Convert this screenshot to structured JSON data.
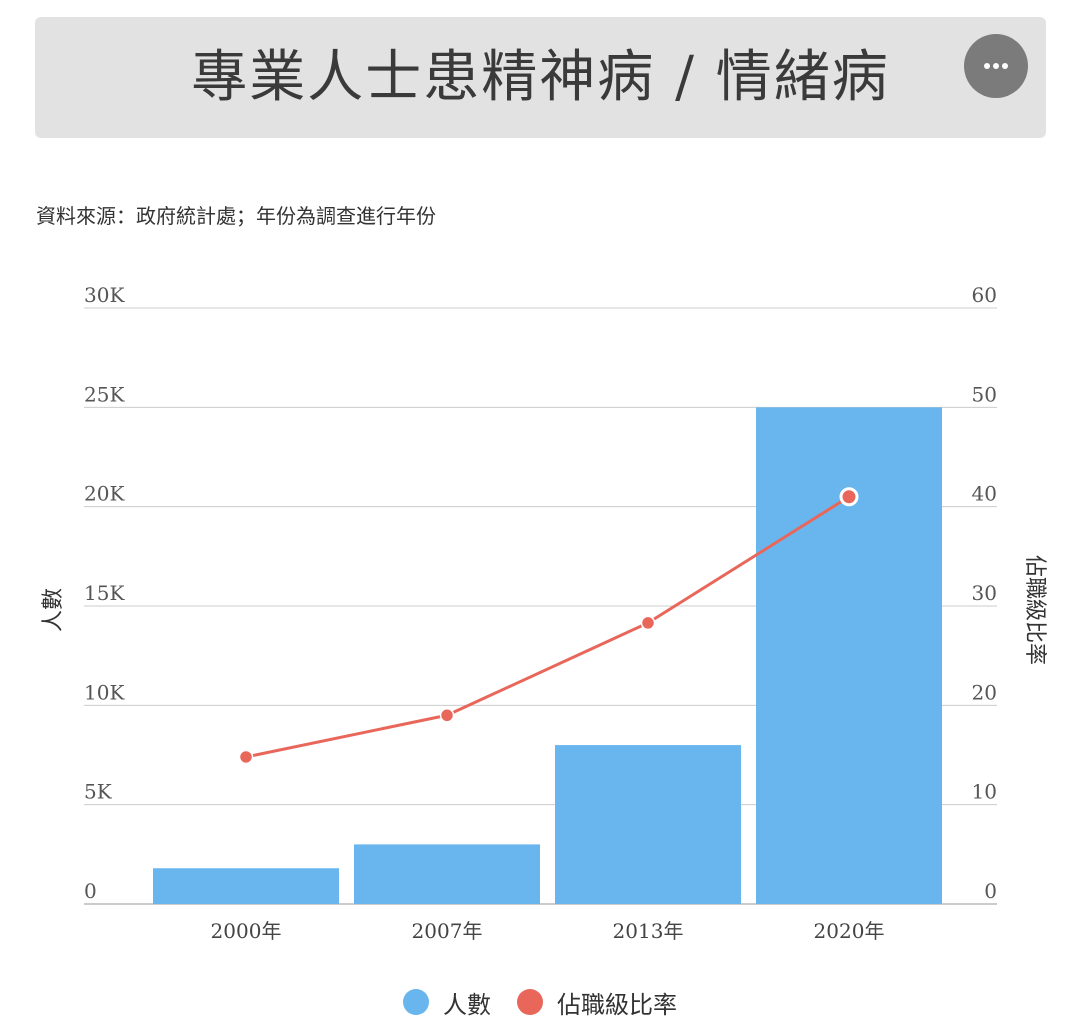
{
  "header": {
    "title": "專業人士患精神病 / 情緒病",
    "more_icon": "ellipsis-icon"
  },
  "source_note": "資料來源：政府統計處；年份為調查進行年份",
  "colors": {
    "bar": "#69b6ee",
    "line": "#e8675a",
    "grid": "#cccccc"
  },
  "chart_data": {
    "type": "bar",
    "categories": [
      "2000年",
      "2007年",
      "2013年",
      "2020年"
    ],
    "series": [
      {
        "name": "人數",
        "type": "bar",
        "axis": "left",
        "values": [
          1800,
          3000,
          8000,
          25000
        ]
      },
      {
        "name": "佔職級比率",
        "type": "line",
        "axis": "right",
        "values": [
          14.8,
          19,
          28.3,
          41
        ]
      }
    ],
    "ylabel": "人數",
    "y2label": "佔職級比率",
    "ylim": [
      0,
      30000
    ],
    "y2lim": [
      0,
      60
    ],
    "yticks": [
      "0",
      "5K",
      "10K",
      "15K",
      "20K",
      "25K",
      "30K"
    ],
    "y2ticks": [
      "0",
      "10",
      "20",
      "30",
      "40",
      "50",
      "60"
    ],
    "grid": true,
    "legend_position": "bottom"
  }
}
